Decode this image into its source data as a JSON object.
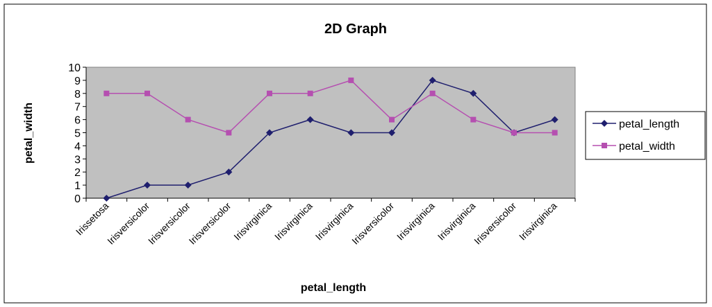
{
  "chart_data": {
    "type": "line",
    "title": "2D Graph",
    "xlabel": "petal_length",
    "ylabel": "petal_width",
    "ylim": [
      0,
      10
    ],
    "yticks": [
      0,
      1,
      2,
      3,
      4,
      5,
      6,
      7,
      8,
      9,
      10
    ],
    "grid": false,
    "legend_position": "right",
    "plot_background": "#c0c0c0",
    "categories": [
      "Irissetosa",
      "Irisversicolor",
      "Irisversicolor",
      "Irisversicolor",
      "Irisvirginica",
      "Irisvirginica",
      "Irisvirginica",
      "Irisversicolor",
      "Irisvirginica",
      "Irisvirginica",
      "Irisversicolor",
      "Irisvirginica"
    ],
    "series": [
      {
        "name": "petal_length",
        "color": "#1f1f6e",
        "marker": "diamond",
        "values": [
          0,
          1,
          1,
          2,
          5,
          6,
          5,
          5,
          9,
          8,
          5,
          6
        ]
      },
      {
        "name": "petal_width",
        "color": "#b54fb0",
        "marker": "square",
        "values": [
          8,
          8,
          6,
          5,
          8,
          8,
          9,
          6,
          8,
          6,
          5,
          5
        ]
      }
    ]
  }
}
